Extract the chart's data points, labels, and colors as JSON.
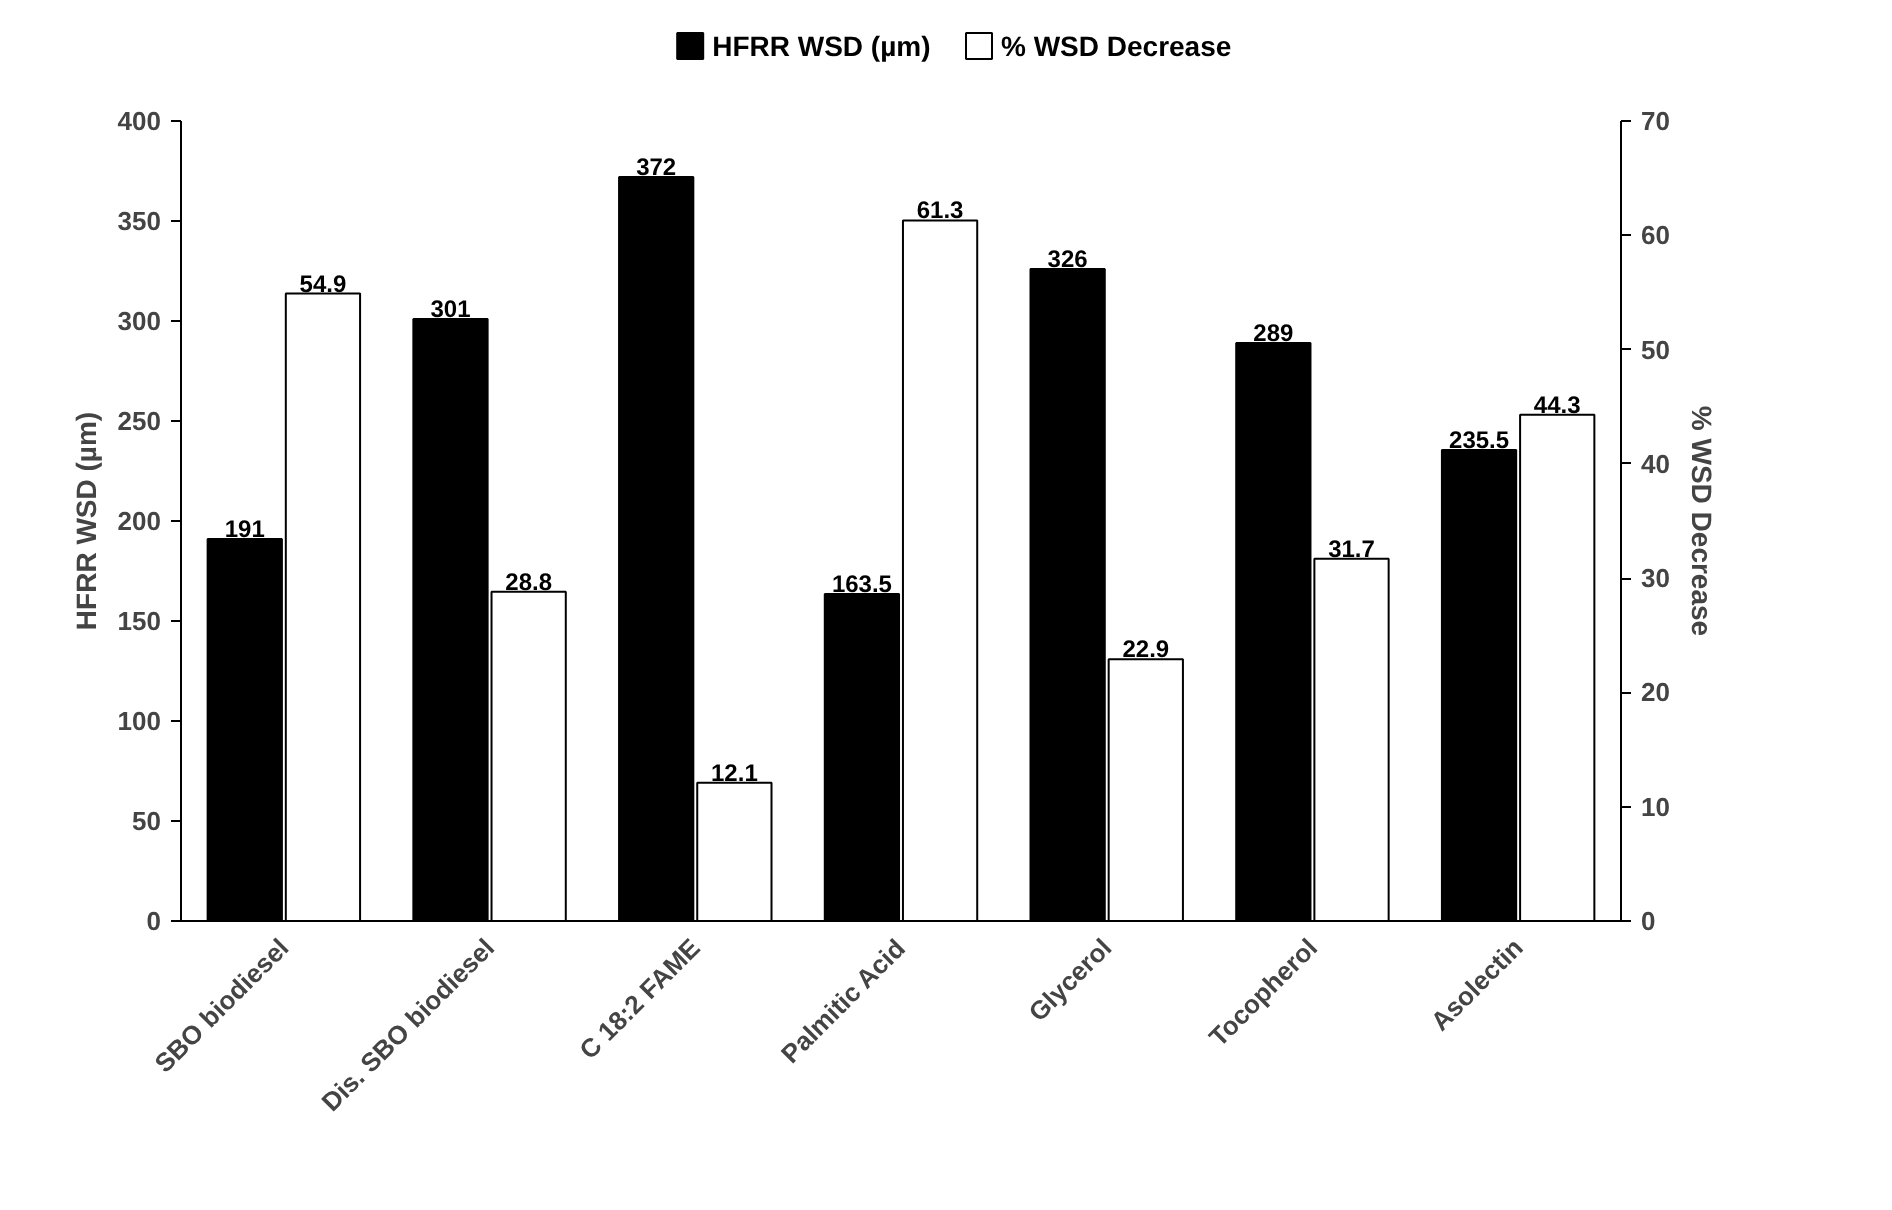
{
  "chart_data": {
    "type": "bar",
    "categories": [
      "SBO biodiesel",
      "Dis. SBO biodiesel",
      "C 18:2 FAME",
      "Palmitic Acid",
      "Glycerol",
      "Tocopherol",
      "Asolectin"
    ],
    "series": [
      {
        "name": "HFRR WSD (µm)",
        "color": "#000000",
        "values": [
          191,
          301,
          372,
          163.5,
          326,
          289,
          235.5
        ]
      },
      {
        "name": "% WSD Decrease",
        "color": "#ffffff",
        "axis": "y2",
        "values": [
          54.9,
          28.8,
          12.1,
          61.3,
          22.9,
          31.7,
          44.3
        ]
      }
    ],
    "ylabel": "HFRR WSD (µm)",
    "y2label": "% WSD Decrease",
    "ylim": [
      0,
      400
    ],
    "yticks": [
      0,
      50,
      100,
      150,
      200,
      250,
      300,
      350,
      400
    ],
    "y2lim": [
      0,
      70
    ],
    "y2ticks": [
      0,
      10,
      20,
      30,
      40,
      50,
      60,
      70
    ],
    "data_labels": true,
    "grid": false,
    "legend": "top"
  }
}
